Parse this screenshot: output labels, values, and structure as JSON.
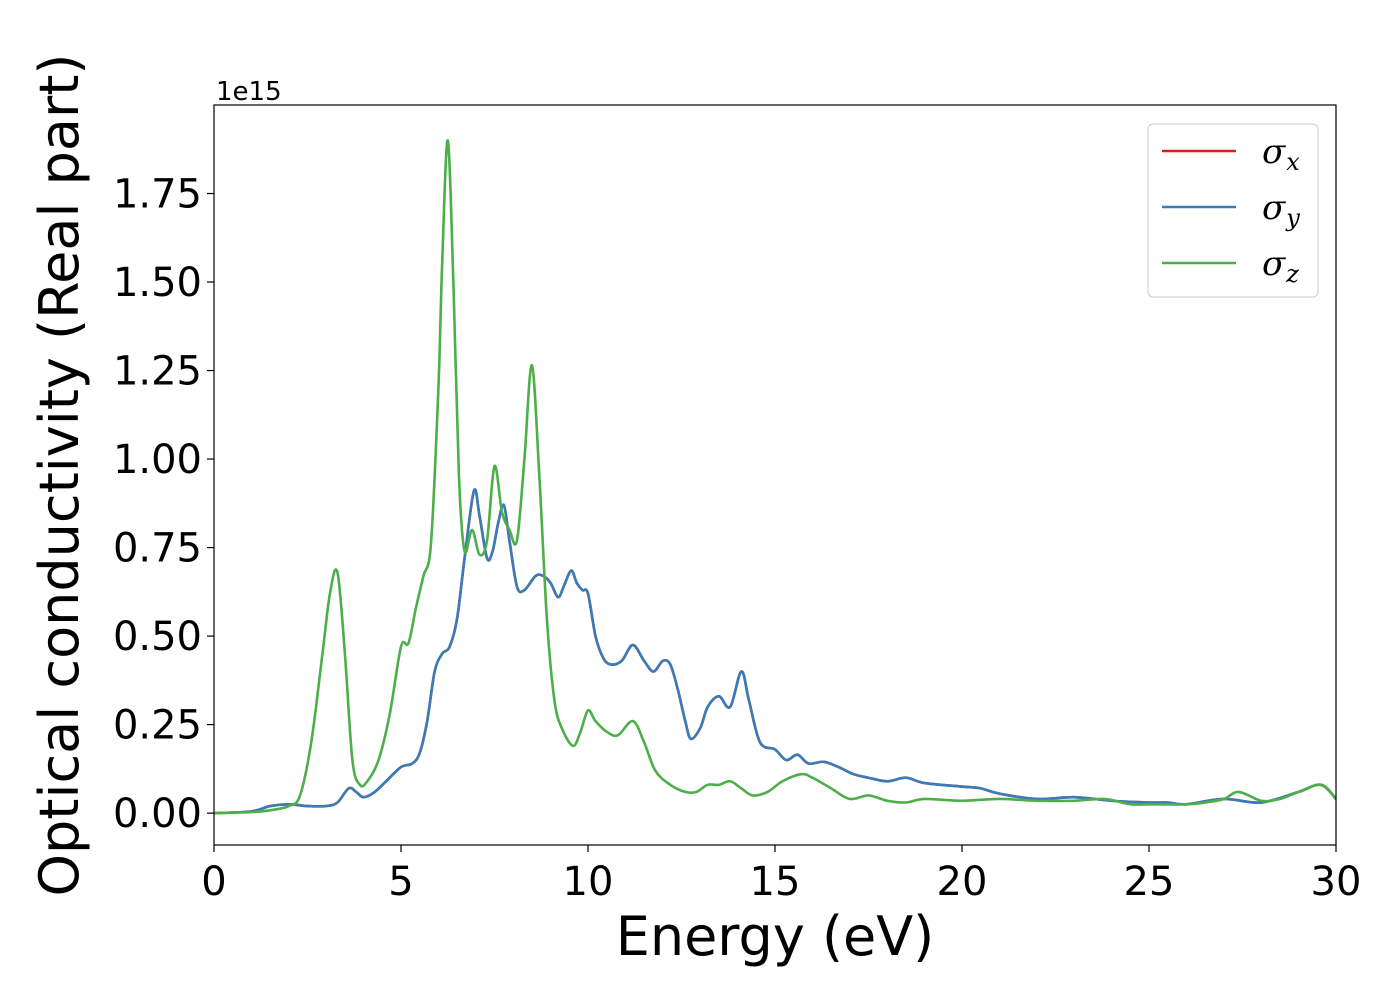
{
  "chart_data": {
    "type": "line",
    "xlabel": "Energy (eV)",
    "ylabel": "Optical conductivity (Real part)",
    "y_offset_label": "1e15",
    "xlim": [
      0,
      30
    ],
    "ylim": [
      -0.09,
      2.0
    ],
    "x_ticks": [
      0,
      5,
      10,
      15,
      20,
      25,
      30
    ],
    "x_tick_labels": [
      "0",
      "5",
      "10",
      "15",
      "20",
      "25",
      "30"
    ],
    "y_ticks": [
      0,
      0.25,
      0.5,
      0.75,
      1.0,
      1.25,
      1.5,
      1.75
    ],
    "y_tick_labels": [
      "0.00",
      "0.25",
      "0.50",
      "0.75",
      "1.00",
      "1.25",
      "1.50",
      "1.75"
    ],
    "grid": false,
    "legend_position": "top-right",
    "series": [
      {
        "name": "σ_x",
        "legend_base": "σ",
        "legend_sub": "x",
        "color": "#e41a1c",
        "x": [
          0,
          1,
          1.5,
          2,
          2.5,
          3,
          3.3,
          3.6,
          3.8,
          4,
          4.3,
          4.6,
          5,
          5.3,
          5.5,
          5.7,
          5.9,
          6.1,
          6.3,
          6.5,
          6.7,
          6.95,
          7.1,
          7.3,
          7.45,
          7.6,
          7.75,
          7.9,
          8.1,
          8.3,
          8.6,
          8.8,
          9,
          9.2,
          9.35,
          9.55,
          9.7,
          9.85,
          10,
          10.2,
          10.4,
          10.6,
          10.9,
          11.2,
          11.5,
          11.75,
          12,
          12.2,
          12.4,
          12.6,
          12.75,
          13,
          13.2,
          13.5,
          13.8,
          14.1,
          14.3,
          14.6,
          15,
          15.3,
          15.6,
          15.9,
          16.3,
          16.7,
          17.1,
          17.5,
          18,
          18.5,
          19,
          20,
          20.5,
          21,
          22,
          23,
          24,
          25,
          25.5,
          26,
          27,
          28,
          29,
          29.6,
          30
        ],
        "y": [
          0,
          0.005,
          0.02,
          0.025,
          0.02,
          0.02,
          0.03,
          0.07,
          0.06,
          0.045,
          0.06,
          0.09,
          0.13,
          0.14,
          0.17,
          0.26,
          0.4,
          0.45,
          0.47,
          0.55,
          0.72,
          0.91,
          0.84,
          0.72,
          0.74,
          0.82,
          0.87,
          0.77,
          0.64,
          0.63,
          0.67,
          0.67,
          0.65,
          0.61,
          0.64,
          0.685,
          0.65,
          0.63,
          0.62,
          0.5,
          0.44,
          0.42,
          0.43,
          0.475,
          0.43,
          0.4,
          0.43,
          0.42,
          0.35,
          0.26,
          0.21,
          0.24,
          0.3,
          0.33,
          0.3,
          0.4,
          0.32,
          0.2,
          0.18,
          0.15,
          0.165,
          0.14,
          0.145,
          0.13,
          0.11,
          0.1,
          0.09,
          0.1,
          0.085,
          0.075,
          0.07,
          0.055,
          0.04,
          0.045,
          0.035,
          0.03,
          0.03,
          0.025,
          0.04,
          0.03,
          0.06,
          0.08,
          0.04
        ]
      },
      {
        "name": "σ_y",
        "legend_base": "σ",
        "legend_sub": "y",
        "color": "#377eb8",
        "x": [
          0,
          1,
          1.5,
          2,
          2.5,
          3,
          3.3,
          3.6,
          3.8,
          4,
          4.3,
          4.6,
          5,
          5.3,
          5.5,
          5.7,
          5.9,
          6.1,
          6.3,
          6.5,
          6.7,
          6.95,
          7.1,
          7.3,
          7.45,
          7.6,
          7.75,
          7.9,
          8.1,
          8.3,
          8.6,
          8.8,
          9,
          9.2,
          9.35,
          9.55,
          9.7,
          9.85,
          10,
          10.2,
          10.4,
          10.6,
          10.9,
          11.2,
          11.5,
          11.75,
          12,
          12.2,
          12.4,
          12.6,
          12.75,
          13,
          13.2,
          13.5,
          13.8,
          14.1,
          14.3,
          14.6,
          15,
          15.3,
          15.6,
          15.9,
          16.3,
          16.7,
          17.1,
          17.5,
          18,
          18.5,
          19,
          20,
          20.5,
          21,
          22,
          23,
          24,
          25,
          25.5,
          26,
          27,
          28,
          29,
          29.6,
          30
        ],
        "y": [
          0,
          0.005,
          0.02,
          0.025,
          0.02,
          0.02,
          0.03,
          0.07,
          0.06,
          0.045,
          0.06,
          0.09,
          0.13,
          0.14,
          0.17,
          0.26,
          0.4,
          0.45,
          0.47,
          0.55,
          0.72,
          0.91,
          0.84,
          0.72,
          0.74,
          0.82,
          0.87,
          0.77,
          0.64,
          0.63,
          0.67,
          0.67,
          0.65,
          0.61,
          0.64,
          0.685,
          0.65,
          0.63,
          0.62,
          0.5,
          0.44,
          0.42,
          0.43,
          0.475,
          0.43,
          0.4,
          0.43,
          0.42,
          0.35,
          0.26,
          0.21,
          0.24,
          0.3,
          0.33,
          0.3,
          0.4,
          0.32,
          0.2,
          0.18,
          0.15,
          0.165,
          0.14,
          0.145,
          0.13,
          0.11,
          0.1,
          0.09,
          0.1,
          0.085,
          0.075,
          0.07,
          0.055,
          0.04,
          0.045,
          0.035,
          0.03,
          0.03,
          0.025,
          0.04,
          0.03,
          0.06,
          0.08,
          0.04
        ]
      },
      {
        "name": "σ_z",
        "legend_base": "σ",
        "legend_sub": "z",
        "color": "#4daf4a",
        "x": [
          0,
          1,
          1.5,
          2,
          2.3,
          2.6,
          2.9,
          3.1,
          3.3,
          3.5,
          3.7,
          3.9,
          4.1,
          4.4,
          4.7,
          5,
          5.2,
          5.4,
          5.6,
          5.8,
          6,
          6.1,
          6.25,
          6.4,
          6.55,
          6.7,
          6.9,
          7.1,
          7.3,
          7.5,
          7.7,
          7.9,
          8.1,
          8.3,
          8.5,
          8.7,
          8.9,
          9.1,
          9.3,
          9.6,
          9.8,
          10,
          10.2,
          10.5,
          10.8,
          11.2,
          11.5,
          11.8,
          12.2,
          12.6,
          12.9,
          13.2,
          13.5,
          13.8,
          14.1,
          14.4,
          14.8,
          15.2,
          15.7,
          16,
          16.5,
          17,
          17.5,
          18,
          18.5,
          19,
          20,
          21,
          22,
          23,
          23.8,
          24.5,
          25,
          26,
          26.5,
          27,
          27.4,
          28,
          28.5,
          29,
          29.6,
          30
        ],
        "y": [
          0,
          0.003,
          0.008,
          0.02,
          0.05,
          0.2,
          0.45,
          0.62,
          0.68,
          0.45,
          0.15,
          0.08,
          0.09,
          0.15,
          0.28,
          0.47,
          0.48,
          0.58,
          0.67,
          0.76,
          1.2,
          1.55,
          1.9,
          1.5,
          0.95,
          0.74,
          0.8,
          0.73,
          0.77,
          0.98,
          0.85,
          0.8,
          0.77,
          1.0,
          1.265,
          0.95,
          0.55,
          0.32,
          0.24,
          0.19,
          0.23,
          0.29,
          0.26,
          0.23,
          0.22,
          0.26,
          0.2,
          0.12,
          0.08,
          0.06,
          0.06,
          0.08,
          0.08,
          0.09,
          0.07,
          0.05,
          0.06,
          0.09,
          0.11,
          0.1,
          0.07,
          0.04,
          0.05,
          0.035,
          0.03,
          0.04,
          0.035,
          0.04,
          0.035,
          0.035,
          0.04,
          0.025,
          0.025,
          0.025,
          0.03,
          0.04,
          0.06,
          0.035,
          0.04,
          0.06,
          0.08,
          0.04
        ]
      }
    ]
  }
}
